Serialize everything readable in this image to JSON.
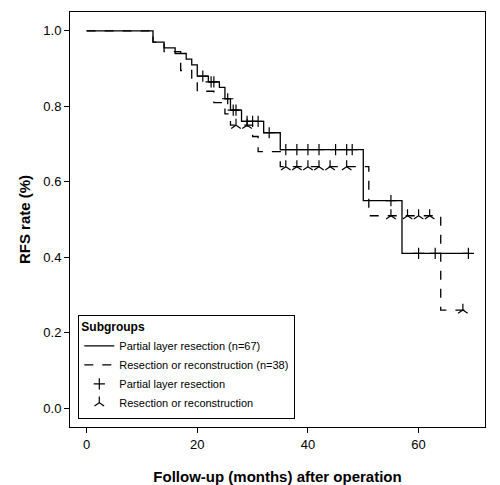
{
  "chart_data": {
    "type": "line",
    "x_label": "Follow-up (months) after operation",
    "y_label": "RFS rate (%)",
    "legend_title": "Subgroups",
    "legend": "lower left",
    "grid": false,
    "xlim": [
      -3,
      72
    ],
    "ylim": [
      -0.05,
      1.05
    ],
    "xticks": [
      0,
      20,
      40,
      60
    ],
    "yticks": [
      {
        "value": 0,
        "label": "0.0"
      },
      0.2,
      0.4,
      0.6,
      0.8,
      {
        "value": 1,
        "label": "1.0"
      }
    ],
    "series": [
      {
        "name": "Partial layer resection (n=67)",
        "type": "line",
        "color": "#000000",
        "line_style": "solid",
        "x": [
          0,
          12,
          14,
          16,
          18,
          19,
          20,
          22,
          24,
          25,
          26,
          28,
          32,
          35,
          50,
          57,
          69
        ],
        "values": [
          1,
          0.97,
          0.955,
          0.94,
          0.925,
          0.91,
          0.88,
          0.865,
          0.85,
          0.82,
          0.79,
          0.76,
          0.73,
          0.685,
          0.55,
          0.41,
          0.41
        ]
      },
      {
        "name": "Resection or reconstruction (n=38)",
        "type": "line",
        "color": "#000000",
        "line_style": "dashed",
        "x": [
          0,
          12,
          14,
          17,
          19,
          20,
          23,
          25,
          26,
          30,
          31,
          35,
          51,
          64,
          69
        ],
        "values": [
          1,
          0.97,
          0.945,
          0.895,
          0.87,
          0.84,
          0.81,
          0.78,
          0.75,
          0.72,
          0.68,
          0.64,
          0.51,
          0.26,
          0.26
        ]
      },
      {
        "name": "Partial layer resection",
        "type": "scatter",
        "color": "#000000",
        "marker": "plus",
        "x": [
          21,
          22.5,
          23,
          25.5,
          26.5,
          27,
          29,
          30,
          31,
          33,
          36,
          38,
          40,
          42,
          45,
          47,
          48,
          55,
          60,
          63,
          69
        ],
        "values": [
          0.88,
          0.865,
          0.865,
          0.82,
          0.79,
          0.79,
          0.76,
          0.76,
          0.76,
          0.73,
          0.685,
          0.685,
          0.685,
          0.685,
          0.685,
          0.685,
          0.685,
          0.55,
          0.41,
          0.41,
          0.41
        ]
      },
      {
        "name": "Resection or reconstruction",
        "type": "scatter",
        "color": "#000000",
        "marker": "tick",
        "x": [
          27,
          29,
          36,
          38,
          40,
          42,
          44,
          47,
          55,
          58,
          60,
          62,
          68
        ],
        "values": [
          0.75,
          0.75,
          0.64,
          0.64,
          0.64,
          0.64,
          0.64,
          0.64,
          0.51,
          0.51,
          0.51,
          0.51,
          0.26
        ]
      }
    ]
  }
}
